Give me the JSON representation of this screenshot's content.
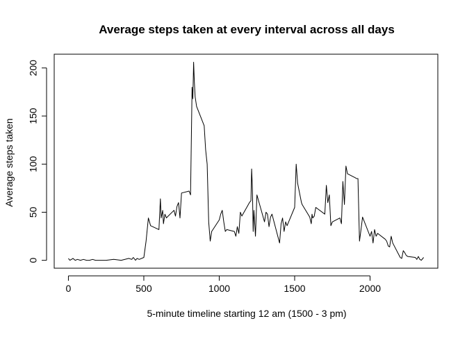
{
  "chart_data": {
    "type": "line",
    "title": "Average steps taken at every interval across all days",
    "xlabel": "5-minute timeline starting 12 am (1500 - 3 pm)",
    "ylabel": "Average steps taken",
    "xlim": [
      -94.2,
      2449.2
    ],
    "ylim": [
      -8.2,
      214.3
    ],
    "xticks": [
      0,
      500,
      1000,
      1500,
      2000
    ],
    "yticks": [
      0,
      50,
      100,
      150,
      200
    ],
    "grid": false,
    "legend": "none",
    "line_color": "#000000",
    "series": [
      {
        "x": [
          0,
          10,
          20,
          30,
          45,
          60,
          80,
          100,
          120,
          140,
          160,
          180,
          200,
          250,
          300,
          350,
          400,
          420,
          430,
          445,
          455,
          470,
          500,
          515,
          530,
          545,
          600,
          610,
          615,
          625,
          630,
          640,
          650,
          655,
          700,
          710,
          720,
          730,
          740,
          750,
          800,
          810,
          820,
          825,
          830,
          835,
          840,
          850,
          900,
          910,
          920,
          930,
          940,
          950,
          1000,
          1010,
          1020,
          1030,
          1040,
          1050,
          1100,
          1110,
          1120,
          1130,
          1140,
          1150,
          1200,
          1210,
          1215,
          1220,
          1225,
          1230,
          1240,
          1250,
          1300,
          1310,
          1320,
          1330,
          1340,
          1350,
          1400,
          1410,
          1420,
          1430,
          1440,
          1450,
          1500,
          1510,
          1520,
          1530,
          1545,
          1550,
          1600,
          1610,
          1615,
          1620,
          1630,
          1640,
          1700,
          1710,
          1720,
          1730,
          1740,
          1750,
          1800,
          1810,
          1820,
          1830,
          1840,
          1850,
          1900,
          1910,
          1920,
          1930,
          1940,
          1950,
          2000,
          2010,
          2020,
          2030,
          2040,
          2050,
          2100,
          2110,
          2120,
          2130,
          2140,
          2150,
          2200,
          2210,
          2220,
          2230,
          2240,
          2250,
          2300,
          2310,
          2320,
          2330,
          2340,
          2355
        ],
        "y": [
          2,
          0,
          1,
          2,
          0,
          1,
          0,
          1,
          0,
          0,
          1,
          0,
          0,
          0,
          1,
          0,
          2,
          1,
          3,
          0,
          2,
          1,
          3,
          20,
          44,
          36,
          32,
          64,
          44,
          52,
          38,
          48,
          44,
          45,
          52,
          46,
          56,
          60,
          44,
          70,
          72,
          68,
          180,
          168,
          206,
          185,
          170,
          160,
          140,
          115,
          100,
          40,
          20,
          30,
          42,
          48,
          52,
          40,
          30,
          32,
          30,
          25,
          35,
          28,
          50,
          46,
          60,
          62,
          95,
          75,
          30,
          52,
          25,
          68,
          40,
          50,
          48,
          35,
          45,
          48,
          18,
          38,
          44,
          30,
          40,
          36,
          55,
          100,
          80,
          72,
          60,
          58,
          45,
          38,
          48,
          44,
          46,
          55,
          48,
          78,
          60,
          68,
          36,
          40,
          44,
          38,
          82,
          58,
          98,
          90,
          86,
          85,
          85,
          20,
          32,
          45,
          25,
          30,
          18,
          32,
          25,
          28,
          22,
          20,
          15,
          14,
          25,
          18,
          3,
          2,
          10,
          8,
          5,
          4,
          3,
          1,
          4,
          1,
          0,
          3
        ]
      }
    ]
  }
}
